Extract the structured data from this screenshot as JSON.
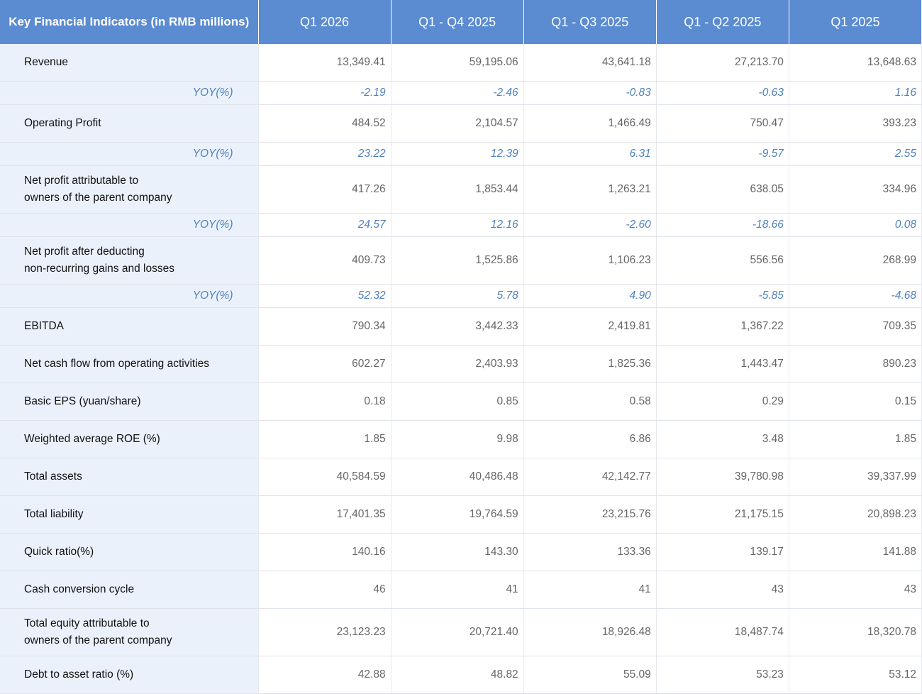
{
  "table": {
    "header": [
      "Key Financial Indicators (in RMB millions)",
      "Q1 2026",
      "Q1 - Q4 2025",
      "Q1 - Q3 2025",
      "Q1 - Q2 2025",
      "Q1 2025"
    ],
    "rows": [
      {
        "label": "Revenue",
        "values": [
          "13,349.41",
          "59,195.06",
          "43,641.18",
          "27,213.70",
          "13,648.63"
        ],
        "yoy": {
          "label": "YOY(%)",
          "values": [
            "-2.19",
            "-2.46",
            "-0.83",
            "-0.63",
            "1.16"
          ]
        }
      },
      {
        "label": "Operating Profit",
        "values": [
          "484.52",
          "2,104.57",
          "1,466.49",
          "750.47",
          "393.23"
        ],
        "yoy": {
          "label": "YOY(%)",
          "values": [
            "23.22",
            "12.39",
            "6.31",
            "-9.57",
            "2.55"
          ]
        }
      },
      {
        "label": "Net profit attributable to\nowners of the parent company",
        "values": [
          "417.26",
          "1,853.44",
          "1,263.21",
          "638.05",
          "334.96"
        ],
        "yoy": {
          "label": "YOY(%)",
          "values": [
            "24.57",
            "12.16",
            "-2.60",
            "-18.66",
            "0.08"
          ]
        }
      },
      {
        "label": "Net profit after deducting\nnon-recurring gains and losses",
        "values": [
          "409.73",
          "1,525.86",
          "1,106.23",
          "556.56",
          "268.99"
        ],
        "yoy": {
          "label": "YOY(%)",
          "values": [
            "52.32",
            "5.78",
            "4.90",
            "-5.85",
            "-4.68"
          ]
        }
      },
      {
        "label": "EBITDA",
        "values": [
          "790.34",
          "3,442.33",
          "2,419.81",
          "1,367.22",
          "709.35"
        ]
      },
      {
        "label": "Net cash flow from operating activities",
        "values": [
          "602.27",
          "2,403.93",
          "1,825.36",
          "1,443.47",
          "890.23"
        ]
      },
      {
        "label": "Basic EPS (yuan/share)",
        "values": [
          "0.18",
          "0.85",
          "0.58",
          "0.29",
          "0.15"
        ]
      },
      {
        "label": "Weighted average ROE (%)",
        "values": [
          "1.85",
          "9.98",
          "6.86",
          "3.48",
          "1.85"
        ]
      },
      {
        "label": "Total assets",
        "values": [
          "40,584.59",
          "40,486.48",
          "42,142.77",
          "39,780.98",
          "39,337.99"
        ]
      },
      {
        "label": "Total liability",
        "values": [
          "17,401.35",
          "19,764.59",
          "23,215.76",
          "21,175.15",
          "20,898.23"
        ]
      },
      {
        "label": "Quick ratio(%)",
        "values": [
          "140.16",
          "143.30",
          "133.36",
          "139.17",
          "141.88"
        ]
      },
      {
        "label": "Cash conversion cycle",
        "values": [
          "46",
          "41",
          "41",
          "43",
          "43"
        ]
      },
      {
        "label": "Total equity attributable to\nowners of the parent company",
        "values": [
          "23,123.23",
          "20,721.40",
          "18,926.48",
          "18,487.74",
          "18,320.78"
        ]
      },
      {
        "label": "Debt to asset ratio (%)",
        "values": [
          "42.88",
          "48.82",
          "55.09",
          "53.23",
          "53.12"
        ]
      }
    ]
  }
}
